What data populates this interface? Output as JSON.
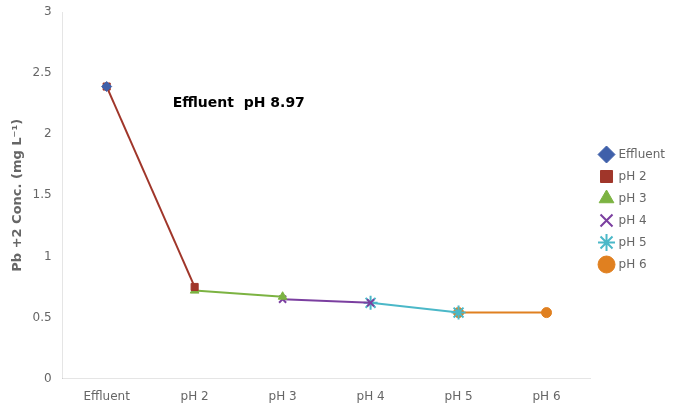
{
  "chart_data": {
    "type": "line",
    "categories": [
      "Effluent",
      "pH 2",
      "pH 3",
      "pH 4",
      "pH 5",
      "pH 6"
    ],
    "series": [
      {
        "name": "Effluent",
        "color": "#3F60AA",
        "marker": "diamond",
        "values": [
          2.39,
          null,
          null,
          null,
          null,
          null
        ]
      },
      {
        "name": "pH 2",
        "color": "#A0362A",
        "marker": "square",
        "values": [
          2.39,
          0.75,
          null,
          null,
          null,
          null
        ]
      },
      {
        "name": "pH 3",
        "color": "#7CB342",
        "marker": "triangle",
        "values": [
          null,
          0.72,
          0.67,
          null,
          null,
          null
        ]
      },
      {
        "name": "pH 4",
        "color": "#7B3FA0",
        "marker": "x",
        "values": [
          null,
          null,
          0.65,
          0.62,
          null,
          null
        ]
      },
      {
        "name": "pH 5",
        "color": "#4BB8C8",
        "marker": "star",
        "values": [
          null,
          null,
          null,
          0.62,
          0.54,
          null
        ]
      },
      {
        "name": "pH 6",
        "color": "#E08020",
        "marker": "circle",
        "values": [
          null,
          null,
          null,
          null,
          0.54,
          0.54
        ]
      }
    ],
    "y_label": "Pb +2 Conc. (mg L⁻¹)",
    "annotations": [
      {
        "text": "Effluent  pH 8.97",
        "x": 0.75,
        "y": 2.22
      }
    ],
    "ylim": [
      0,
      3
    ],
    "yticks": [
      0,
      0.5,
      1,
      1.5,
      2,
      2.5,
      3
    ],
    "grid": false,
    "legend": "right"
  }
}
